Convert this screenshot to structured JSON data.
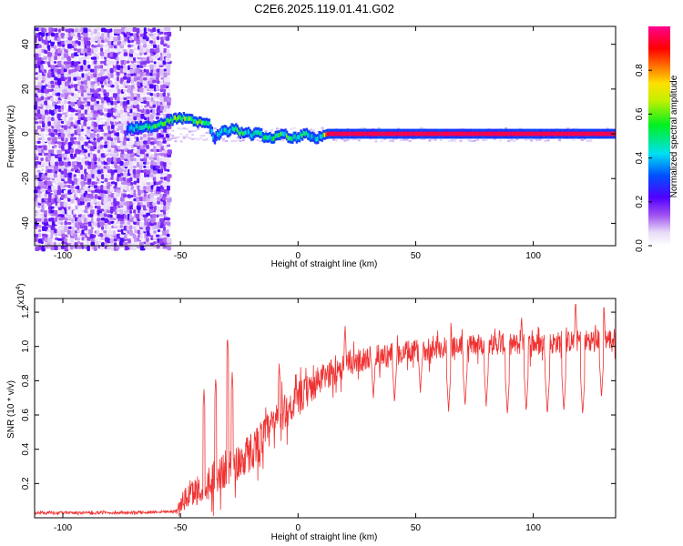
{
  "title": "C2E6.2025.119.01.41.G02",
  "chart_data": [
    {
      "type": "heatmap",
      "xlabel": "Height of straight line (km)",
      "ylabel": "Frequency (Hz)",
      "xlim": [
        -112,
        135
      ],
      "ylim": [
        -50,
        48
      ],
      "xticks": [
        -100,
        -50,
        0,
        50,
        100
      ],
      "yticks": [
        -40,
        -20,
        0,
        20,
        40
      ],
      "colorbar": {
        "label": "Normalized spectral amplitude",
        "range": [
          0,
          1
        ],
        "ticks": [
          0.0,
          0.2,
          0.4,
          0.6,
          0.8
        ],
        "tick_labels": [
          "0.0",
          "0.2",
          "0.4",
          "0.6",
          "0.8"
        ],
        "colormap": "rainbow-white-violet-blue-cyan-green-yellow-red-magenta"
      },
      "noise_region_x": [
        -112,
        -55
      ],
      "ridge": {
        "x": [
          -73,
          -68,
          -64,
          -60,
          -57,
          -55,
          -52,
          -48,
          -45,
          -42,
          -40,
          -38,
          -36,
          -34,
          -32,
          -30,
          -28,
          -25,
          -22,
          -20,
          -17,
          -14,
          -11,
          -8,
          -5,
          -2,
          2,
          5,
          8,
          10,
          12,
          20,
          40,
          60,
          80,
          100,
          120,
          134
        ],
        "freq": [
          2,
          3,
          3,
          4,
          5,
          6,
          7,
          7,
          6,
          5,
          5,
          4,
          -2,
          0,
          2,
          1,
          3,
          0,
          1,
          -1,
          1,
          -2,
          -2,
          0,
          -1,
          -2,
          0,
          -1,
          -2,
          -1,
          0,
          0,
          0,
          0,
          0,
          0,
          0,
          0
        ],
        "amplitude": [
          0.3,
          0.45,
          0.5,
          0.5,
          0.55,
          0.6,
          0.55,
          0.6,
          0.5,
          0.55,
          0.5,
          0.45,
          0.35,
          0.4,
          0.45,
          0.4,
          0.45,
          0.5,
          0.45,
          0.45,
          0.5,
          0.45,
          0.45,
          0.5,
          0.5,
          0.45,
          0.55,
          0.45,
          0.4,
          0.45,
          0.95,
          0.95,
          0.95,
          0.95,
          0.95,
          0.95,
          0.95,
          0.95
        ]
      }
    },
    {
      "type": "line",
      "xlabel": "Height of straight line (km)",
      "ylabel": "SNR (10 * v/v)",
      "y_multiplier": "(x10^4)",
      "xlim": [
        -112,
        135
      ],
      "ylim": [
        0,
        1.28
      ],
      "xticks": [
        -100,
        -50,
        0,
        50,
        100
      ],
      "yticks": [
        0.2,
        0.4,
        0.6,
        0.8,
        1.0,
        1.2
      ],
      "ytick_labels": [
        "0.2",
        "0.4",
        "0.6",
        "0.8",
        "1.0",
        "1.2"
      ],
      "color": "#f03232",
      "envelope": {
        "x": [
          -112,
          -90,
          -70,
          -52,
          -48,
          -44,
          -40,
          -35,
          -30,
          -25,
          -20,
          -15,
          -10,
          -5,
          0,
          5,
          10,
          15,
          20,
          30,
          40,
          50,
          60,
          70,
          80,
          90,
          100,
          110,
          120,
          130,
          134
        ],
        "y": [
          0.03,
          0.03,
          0.03,
          0.04,
          0.12,
          0.16,
          0.2,
          0.25,
          0.3,
          0.34,
          0.4,
          0.48,
          0.56,
          0.64,
          0.7,
          0.76,
          0.82,
          0.86,
          0.9,
          0.94,
          0.96,
          0.98,
          1.0,
          1.01,
          1.02,
          1.02,
          1.02,
          1.03,
          1.04,
          1.05,
          1.05
        ]
      },
      "fluctuation": {
        "x": [
          -112,
          -52,
          -48,
          -35,
          -20,
          0,
          20,
          60,
          134
        ],
        "amplitude": [
          0.02,
          0.02,
          0.18,
          0.28,
          0.3,
          0.25,
          0.18,
          0.16,
          0.16
        ]
      },
      "peaks": [
        {
          "x": -40,
          "y": 0.75
        },
        {
          "x": -35,
          "y": 0.82
        },
        {
          "x": -30,
          "y": 1.06
        },
        {
          "x": -28,
          "y": 0.85
        },
        {
          "x": -8,
          "y": 0.9
        },
        {
          "x": 20,
          "y": 1.12
        },
        {
          "x": 65,
          "y": 1.15
        },
        {
          "x": 95,
          "y": 1.18
        },
        {
          "x": 118,
          "y": 1.27
        },
        {
          "x": 130,
          "y": 1.25
        }
      ],
      "dips": [
        {
          "x": 32,
          "y": 0.7
        },
        {
          "x": 41,
          "y": 0.67
        },
        {
          "x": 52,
          "y": 0.73
        },
        {
          "x": 64,
          "y": 0.62
        },
        {
          "x": 71,
          "y": 0.65
        },
        {
          "x": 80,
          "y": 0.65
        },
        {
          "x": 89,
          "y": 0.6
        },
        {
          "x": 97,
          "y": 0.62
        },
        {
          "x": 106,
          "y": 0.6
        },
        {
          "x": 113,
          "y": 0.62
        },
        {
          "x": 121,
          "y": 0.6
        },
        {
          "x": 129,
          "y": 0.7
        }
      ]
    }
  ]
}
